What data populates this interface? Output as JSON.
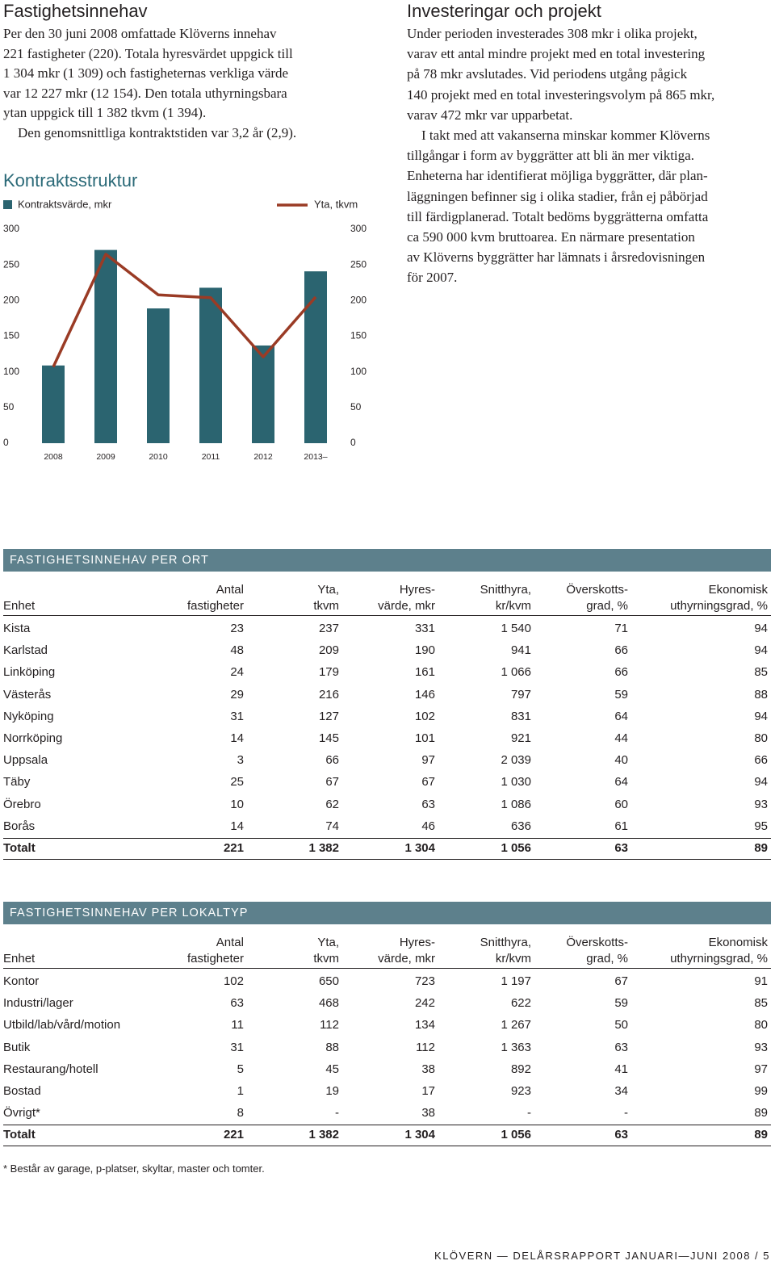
{
  "left": {
    "title": "Fastighetsinnehav",
    "paragraphs": [
      {
        "lines": [
          "Per den 30 juni 2008 omfattade Klöverns innehav",
          "221 fastigheter (220). Totala hyresvärdet uppgick till",
          "1 304 mkr (1 309) och fastigheternas verkliga värde",
          "var 12 227 mkr (12 154). Den totala uthyrningsbara",
          "ytan uppgick till 1 382 tkvm (1 394)."
        ]
      },
      {
        "lines": [
          "Den genomsnittliga kontraktstiden var 3,2 år (2,9)."
        ]
      }
    ]
  },
  "right": {
    "title": "Investeringar och projekt",
    "paragraphs": [
      {
        "lines": [
          "Under perioden investerades 308 mkr i olika projekt,",
          "varav ett antal mindre projekt med en total investering",
          "på 78 mkr avslutades. Vid periodens utgång pågick",
          "140 projekt med en total investeringsvolym på 865 mkr,",
          "varav 472 mkr var upparbetat."
        ]
      },
      {
        "lines": [
          "I takt med att vakanserna minskar kommer Klöverns",
          "tillgångar i form av byggrätter att bli än mer viktiga.",
          "Enheterna har identifierat möjliga byggrätter, där plan-",
          "läggningen befinner sig i olika stadier, från ej påbörjad",
          "till färdigplanerad. Totalt bedöms byggrätterna omfatta",
          "ca 590 000 kvm bruttoarea. En närmare presentation",
          "av Klöverns byggrätter har lämnats i årsredovisningen",
          "för 2007."
        ]
      }
    ]
  },
  "chart_data": {
    "type": "bar-line",
    "title": "Kontraktsstruktur",
    "categories": [
      "2008",
      "2009",
      "2010",
      "2011",
      "2012",
      "2013–"
    ],
    "series": [
      {
        "name": "Kontraktsvärde, mkr",
        "color": "#2b6470",
        "type": "bar",
        "values": [
          109,
          271,
          189,
          218,
          137,
          241
        ]
      },
      {
        "name": "Yta, tkvm",
        "color": "#9a3b25",
        "type": "line",
        "axis": "y2",
        "values": [
          107,
          265,
          208,
          204,
          121,
          205
        ]
      }
    ],
    "ylim": [
      0,
      300
    ],
    "yticks": [
      0,
      50,
      100,
      150,
      200,
      250,
      300
    ],
    "y2lim": [
      0,
      300
    ],
    "y2ticks": [
      0,
      50,
      100,
      150,
      200,
      250,
      300
    ],
    "grid": false,
    "legend": "top"
  },
  "tables": [
    {
      "title": "FASTIGHETSINNEHAV PER ORT",
      "columns": [
        {
          "lines": [
            "Enhet"
          ]
        },
        {
          "lines": [
            "Antal",
            "fastigheter"
          ]
        },
        {
          "lines": [
            "Yta,",
            "tkvm"
          ]
        },
        {
          "lines": [
            "Hyres-",
            "värde, mkr"
          ]
        },
        {
          "lines": [
            "Snitthyra,",
            "kr/kvm"
          ]
        },
        {
          "lines": [
            "Överskotts-",
            "grad, %"
          ]
        },
        {
          "lines": [
            "Ekonomisk",
            "uthyrningsgrad, %"
          ]
        }
      ],
      "rows": [
        [
          "Kista",
          "23",
          "237",
          "331",
          "1 540",
          "71",
          "94"
        ],
        [
          "Karlstad",
          "48",
          "209",
          "190",
          "941",
          "66",
          "94"
        ],
        [
          "Linköping",
          "24",
          "179",
          "161",
          "1 066",
          "66",
          "85"
        ],
        [
          "Västerås",
          "29",
          "216",
          "146",
          "797",
          "59",
          "88"
        ],
        [
          "Nyköping",
          "31",
          "127",
          "102",
          "831",
          "64",
          "94"
        ],
        [
          "Norrköping",
          "14",
          "145",
          "101",
          "921",
          "44",
          "80"
        ],
        [
          "Uppsala",
          "3",
          "66",
          "97",
          "2 039",
          "40",
          "66"
        ],
        [
          "Täby",
          "25",
          "67",
          "67",
          "1 030",
          "64",
          "94"
        ],
        [
          "Örebro",
          "10",
          "62",
          "63",
          "1 086",
          "60",
          "93"
        ],
        [
          "Borås",
          "14",
          "74",
          "46",
          "636",
          "61",
          "95"
        ]
      ],
      "total": [
        "Totalt",
        "221",
        "1 382",
        "1 304",
        "1 056",
        "63",
        "89"
      ]
    },
    {
      "title": "FASTIGHETSINNEHAV PER LOKALTYP",
      "columns": [
        {
          "lines": [
            "Enhet"
          ]
        },
        {
          "lines": [
            "Antal",
            "fastigheter"
          ]
        },
        {
          "lines": [
            "Yta,",
            "tkvm"
          ]
        },
        {
          "lines": [
            "Hyres-",
            "värde, mkr"
          ]
        },
        {
          "lines": [
            "Snitthyra,",
            "kr/kvm"
          ]
        },
        {
          "lines": [
            "Överskotts-",
            "grad, %"
          ]
        },
        {
          "lines": [
            "Ekonomisk",
            "uthyrningsgrad, %"
          ]
        }
      ],
      "rows": [
        [
          "Kontor",
          "102",
          "650",
          "723",
          "1 197",
          "67",
          "91"
        ],
        [
          "Industri/lager",
          "63",
          "468",
          "242",
          "622",
          "59",
          "85"
        ],
        [
          "Utbild/lab/vård/motion",
          "11",
          "112",
          "134",
          "1 267",
          "50",
          "80"
        ],
        [
          "Butik",
          "31",
          "88",
          "112",
          "1 363",
          "63",
          "93"
        ],
        [
          "Restaurang/hotell",
          "5",
          "45",
          "38",
          "892",
          "41",
          "97"
        ],
        [
          "Bostad",
          "1",
          "19",
          "17",
          "923",
          "34",
          "99"
        ],
        [
          "Övrigt*",
          "8",
          "-",
          "38",
          "-",
          "-",
          "89"
        ]
      ],
      "total": [
        "Totalt",
        "221",
        "1 382",
        "1 304",
        "1 056",
        "63",
        "89"
      ]
    }
  ],
  "footnote": "* Består av garage, p-platser, skyltar, master och tomter.",
  "footer": "KLÖVERN — DELÅRSRAPPORT JANUARI—JUNI 2008 / 5"
}
